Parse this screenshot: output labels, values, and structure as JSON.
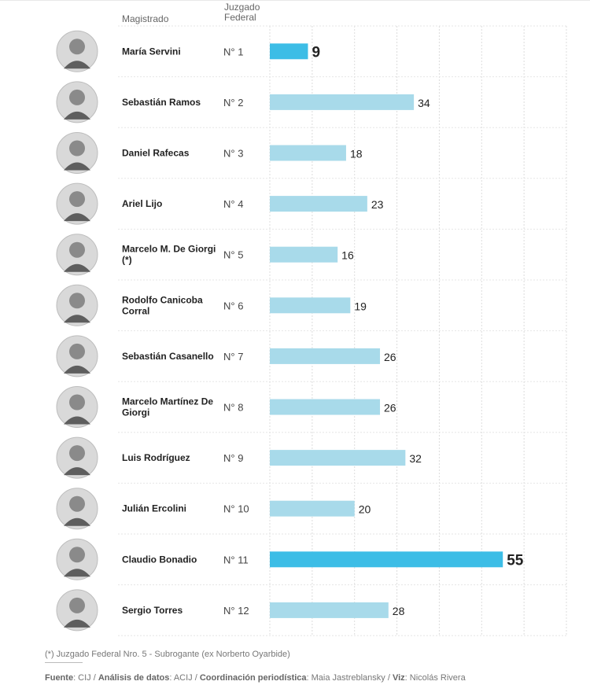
{
  "header": {
    "magistrado_label": "Magistrado",
    "juzgado_label_1": "Juzgado",
    "juzgado_label_2": "Federal"
  },
  "colors": {
    "bar": "#a8daea",
    "bar_highlight": "#3cbde6",
    "grid": "#dcdcdc",
    "row_divider": "#e6e6e6",
    "avatar_bg": "#d9d9d9"
  },
  "chart_data": {
    "type": "bar",
    "orientation": "horizontal",
    "xlim": [
      0,
      70
    ],
    "grid": true,
    "columns": [
      "Magistrado",
      "Juzgado Federal"
    ],
    "rows": [
      {
        "name": "María Servini",
        "court": "N° 1",
        "value": 9,
        "highlight": true
      },
      {
        "name": "Sebastián Ramos",
        "court": "N° 2",
        "value": 34,
        "highlight": false
      },
      {
        "name": "Daniel Rafecas",
        "court": "N° 3",
        "value": 18,
        "highlight": false
      },
      {
        "name": "Ariel Lijo",
        "court": "N° 4",
        "value": 23,
        "highlight": false
      },
      {
        "name": "Marcelo M. De Giorgi (*)",
        "court": "N° 5",
        "value": 16,
        "highlight": false
      },
      {
        "name": "Rodolfo Canicoba Corral",
        "court": "N° 6",
        "value": 19,
        "highlight": false
      },
      {
        "name": "Sebastián Casanello",
        "court": "N° 7",
        "value": 26,
        "highlight": false
      },
      {
        "name": "Marcelo Martínez De Giorgi",
        "court": "N° 8",
        "value": 26,
        "highlight": false
      },
      {
        "name": "Luis Rodríguez",
        "court": "N° 9",
        "value": 32,
        "highlight": false
      },
      {
        "name": "Julián Ercolini",
        "court": "N° 10",
        "value": 20,
        "highlight": false
      },
      {
        "name": "Claudio Bonadio",
        "court": "N° 11",
        "value": 55,
        "highlight": true
      },
      {
        "name": "Sergio Torres",
        "court": "N° 12",
        "value": 28,
        "highlight": false
      }
    ]
  },
  "footer": {
    "footnote": "(*) Juzgado Federal Nro. 5 - Subrogante (ex Norberto Oyarbide)",
    "fuente_label": "Fuente",
    "fuente_value": ": CIJ / ",
    "analisis_label": "Análisis de datos",
    "analisis_value": ": ACIJ / ",
    "coord_label": "Coordinación periodística",
    "coord_value": ": Maia Jastreblansky / ",
    "viz_label": "Viz",
    "viz_value": ": Nicolás Rivera"
  }
}
